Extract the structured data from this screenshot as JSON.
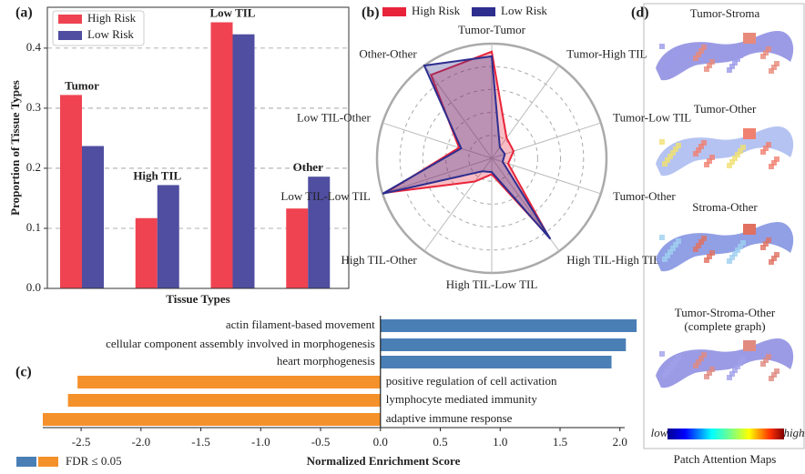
{
  "panel_labels": [
    "(a)",
    "(b)",
    "(c)",
    "(d)"
  ],
  "chart_data": [
    {
      "type": "bar",
      "xlabel": "Tissue Types",
      "ylabel": "Proportion of Tissue Types",
      "categories": [
        "Tumor",
        "High TIL",
        "Low TIL",
        "Other"
      ],
      "series": [
        {
          "name": "High Risk",
          "color": "#ef4351",
          "values": [
            0.322,
            0.117,
            0.443,
            0.133
          ]
        },
        {
          "name": "Low Risk",
          "color": "#4f4ea0",
          "values": [
            0.237,
            0.172,
            0.423,
            0.186
          ]
        }
      ],
      "ylim": [
        0,
        0.468
      ],
      "yticks": [
        {
          "value": 0,
          "label": "0.0"
        },
        0.1,
        0.2,
        0.3,
        0.4
      ],
      "grid": true,
      "legend": "upper left"
    },
    {
      "type": "radar",
      "categories": [
        "Tumor-Tumor",
        "Tumor-High TIL",
        "Tumor-Low TIL",
        "Tumor-Other",
        "High TIL-High TIL",
        "High TIL-Low TIL",
        "High TIL-Other",
        "Low TIL-Low TIL",
        "Low TIL-Other",
        "Other-Other"
      ],
      "series": [
        {
          "name": "High Risk",
          "color": "#e8243a",
          "values": [
            0.93,
            0.22,
            0.2,
            0.15,
            0.84,
            0.14,
            0.25,
            0.97,
            0.3,
            0.9
          ]
        },
        {
          "name": "Low Risk",
          "color": "#2e2e8f",
          "values": [
            0.89,
            0.12,
            0.12,
            0.1,
            0.87,
            0.12,
            0.14,
            1.0,
            0.28,
            1.0
          ]
        }
      ],
      "rlim": [
        0,
        1
      ],
      "legend": "upper center"
    },
    {
      "type": "barh",
      "xlabel": "Normalized Enrichment Score",
      "categories": [
        "actin filament-based movement",
        "cellular component assembly involved in morphogenesis",
        "heart morphogenesis",
        "positive regulation of cell activation",
        "lymphocyte mediated immunity",
        "adaptive immune response"
      ],
      "values": [
        2.14,
        2.05,
        1.93,
        -2.53,
        -2.61,
        -2.82
      ],
      "colors": [
        "#4a7fb6",
        "#4a7fb6",
        "#4a7fb6",
        "#f5912b",
        "#f5912b",
        "#f5912b"
      ],
      "xlim": [
        -2.82,
        2.04
      ],
      "xticks": [
        -2.5,
        {
          "value": -2,
          "label": "-2.0"
        },
        -1.5,
        {
          "value": -1,
          "label": "-1.0"
        },
        -0.5,
        {
          "value": 0,
          "label": "0.0"
        },
        0.5,
        {
          "value": 1,
          "label": "1.0"
        },
        1.5,
        {
          "value": 2,
          "label": "2.0"
        }
      ],
      "legend": {
        "label": "FDR ≤ 0.05",
        "colors": [
          "#4a7fb6",
          "#f5912b"
        ]
      }
    }
  ],
  "attention_maps": {
    "titles": [
      [
        "Tumor-Stroma"
      ],
      [
        "Tumor-Other"
      ],
      [
        "Stroma-Other"
      ],
      [
        "Tumor-Stroma-Other",
        "(complete graph)"
      ]
    ],
    "colorbar": {
      "low": "low",
      "high": "high"
    },
    "caption": "Patch Attention Maps"
  }
}
